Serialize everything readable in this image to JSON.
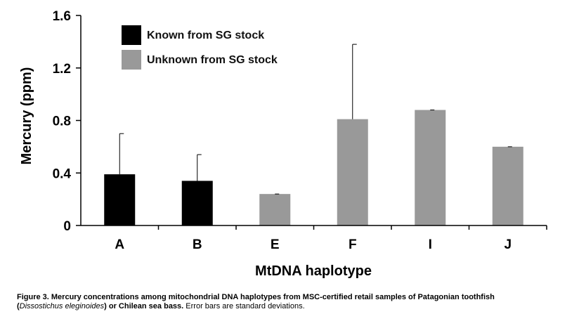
{
  "chart_data": {
    "type": "bar",
    "categories": [
      "A",
      "B",
      "E",
      "F",
      "I",
      "J"
    ],
    "values": [
      0.39,
      0.34,
      0.24,
      0.81,
      0.88,
      0.6
    ],
    "error": [
      0.31,
      0.2,
      0.0,
      0.57,
      0.0,
      0.0
    ],
    "groups": [
      "Known from SG stock",
      "Known from SG stock",
      "Unknown from SG stock",
      "Unknown from SG stock",
      "Unknown from SG stock",
      "Unknown from SG stock"
    ],
    "legend": [
      {
        "label": "Known from SG stock",
        "color": "#000000"
      },
      {
        "label": "Unknown from SG stock",
        "color": "#999999"
      }
    ],
    "xlabel": "MtDNA haplotype",
    "ylabel": "Mercury (ppm)",
    "ylim": [
      0,
      1.6
    ],
    "yticks": [
      "0",
      "0.4",
      "0.8",
      "1.2",
      "1.6"
    ],
    "ytick_values": [
      0,
      0.4,
      0.8,
      1.2,
      1.6
    ],
    "legend_position": "top-left",
    "grid": false
  },
  "caption": {
    "title": "Figure 3. Mercury concentrations among mitochondrial DNA haplotypes from MSC-certified retail samples of Patagonian toothfish",
    "open_paren": "(",
    "species": "Dissostichus eleginoides",
    "mid": ") or Chilean sea bass.",
    "rest": " Error bars are standard deviations."
  }
}
